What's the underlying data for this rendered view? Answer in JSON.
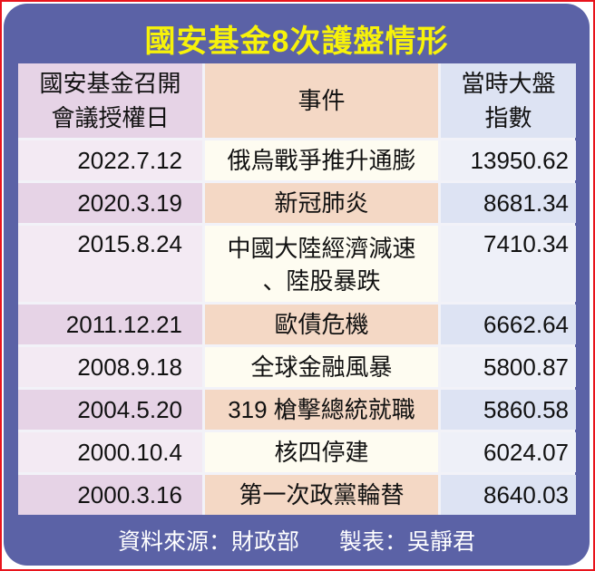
{
  "title": "國安基金8次護盤情形",
  "headers": [
    "國安基金召開\n會議授權日",
    "事件",
    "當時大盤\n指數"
  ],
  "header_lines": [
    [
      "國安基金召開",
      "會議授權日"
    ],
    [
      "事件"
    ],
    [
      "當時大盤",
      "指數"
    ]
  ],
  "rows": [
    {
      "date": "2022.7.12",
      "event": "俄烏戰爭推升通膨",
      "index": "13950.62"
    },
    {
      "date": "2020.3.19",
      "event": "新冠肺炎",
      "index": "8681.34"
    },
    {
      "date": "2015.8.24",
      "event": "中國大陸經濟減速\n、陸股暴跌",
      "event_lines": [
        "中國大陸經濟減速",
        "、陸股暴跌"
      ],
      "index": "7410.34"
    },
    {
      "date": "2011.12.21",
      "event": "歐債危機",
      "index": "6662.64"
    },
    {
      "date": "2008.9.18",
      "event": "全球金融風暴",
      "index": "5800.87"
    },
    {
      "date": "2004.5.20",
      "event": "319 槍擊總統就職",
      "index": "5860.58"
    },
    {
      "date": "2000.10.4",
      "event": "核四停建",
      "index": "6024.07"
    },
    {
      "date": "2000.3.16",
      "event": "第一次政黨輪替",
      "index": "8640.03"
    }
  ],
  "footer": {
    "source": "資料來源：財政部",
    "author": "製表：吳靜君"
  },
  "colors": {
    "panel": "#5b62a6",
    "title": "#f7f20a",
    "border": "#e8141c"
  },
  "chart_data": {
    "type": "table",
    "title": "國安基金8次護盤情形",
    "columns": [
      "國安基金召開會議授權日",
      "事件",
      "當時大盤指數"
    ]
  }
}
